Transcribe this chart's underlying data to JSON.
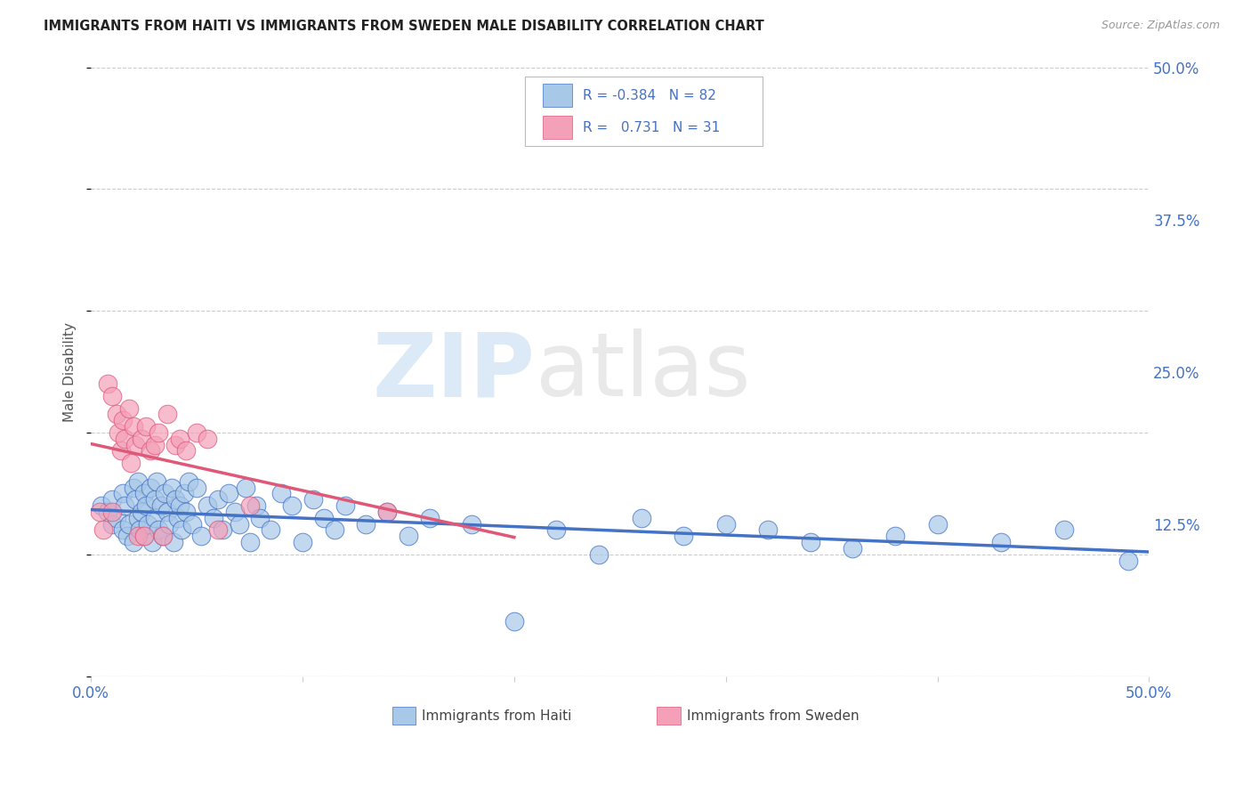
{
  "title": "IMMIGRANTS FROM HAITI VS IMMIGRANTS FROM SWEDEN MALE DISABILITY CORRELATION CHART",
  "source": "Source: ZipAtlas.com",
  "ylabel": "Male Disability",
  "xlim": [
    0.0,
    0.5
  ],
  "ylim": [
    0.0,
    0.5
  ],
  "haiti_color": "#a8c8e8",
  "sweden_color": "#f4a0b8",
  "haiti_line_color": "#4472c4",
  "sweden_line_color": "#e05878",
  "legend_label_haiti": "Immigrants from Haiti",
  "legend_label_sweden": "Immigrants from Sweden",
  "watermark_zip": "ZIP",
  "watermark_atlas": "atlas",
  "haiti_R": -0.384,
  "haiti_N": 82,
  "sweden_R": 0.731,
  "sweden_N": 31,
  "haiti_scatter_x": [
    0.005,
    0.008,
    0.01,
    0.01,
    0.012,
    0.015,
    0.015,
    0.016,
    0.017,
    0.018,
    0.02,
    0.02,
    0.021,
    0.022,
    0.022,
    0.023,
    0.024,
    0.025,
    0.025,
    0.026,
    0.027,
    0.028,
    0.029,
    0.03,
    0.03,
    0.031,
    0.032,
    0.033,
    0.034,
    0.035,
    0.036,
    0.037,
    0.038,
    0.039,
    0.04,
    0.041,
    0.042,
    0.043,
    0.044,
    0.045,
    0.046,
    0.048,
    0.05,
    0.052,
    0.055,
    0.058,
    0.06,
    0.062,
    0.065,
    0.068,
    0.07,
    0.073,
    0.075,
    0.078,
    0.08,
    0.085,
    0.09,
    0.095,
    0.1,
    0.105,
    0.11,
    0.115,
    0.12,
    0.13,
    0.14,
    0.15,
    0.16,
    0.18,
    0.2,
    0.22,
    0.24,
    0.26,
    0.28,
    0.3,
    0.32,
    0.34,
    0.36,
    0.38,
    0.4,
    0.43,
    0.46,
    0.49
  ],
  "haiti_scatter_y": [
    0.14,
    0.135,
    0.145,
    0.125,
    0.13,
    0.15,
    0.12,
    0.14,
    0.115,
    0.125,
    0.155,
    0.11,
    0.145,
    0.13,
    0.16,
    0.12,
    0.135,
    0.15,
    0.115,
    0.14,
    0.125,
    0.155,
    0.11,
    0.145,
    0.13,
    0.16,
    0.12,
    0.14,
    0.115,
    0.15,
    0.135,
    0.125,
    0.155,
    0.11,
    0.145,
    0.13,
    0.14,
    0.12,
    0.15,
    0.135,
    0.16,
    0.125,
    0.155,
    0.115,
    0.14,
    0.13,
    0.145,
    0.12,
    0.15,
    0.135,
    0.125,
    0.155,
    0.11,
    0.14,
    0.13,
    0.12,
    0.15,
    0.14,
    0.11,
    0.145,
    0.13,
    0.12,
    0.14,
    0.125,
    0.135,
    0.115,
    0.13,
    0.125,
    0.045,
    0.12,
    0.1,
    0.13,
    0.115,
    0.125,
    0.12,
    0.11,
    0.105,
    0.115,
    0.125,
    0.11,
    0.12,
    0.095
  ],
  "sweden_scatter_x": [
    0.004,
    0.006,
    0.008,
    0.01,
    0.01,
    0.012,
    0.013,
    0.014,
    0.015,
    0.016,
    0.018,
    0.019,
    0.02,
    0.021,
    0.022,
    0.024,
    0.025,
    0.026,
    0.028,
    0.03,
    0.032,
    0.034,
    0.036,
    0.04,
    0.042,
    0.045,
    0.05,
    0.055,
    0.06,
    0.075,
    0.14
  ],
  "sweden_scatter_y": [
    0.135,
    0.12,
    0.24,
    0.23,
    0.135,
    0.215,
    0.2,
    0.185,
    0.21,
    0.195,
    0.22,
    0.175,
    0.205,
    0.19,
    0.115,
    0.195,
    0.115,
    0.205,
    0.185,
    0.19,
    0.2,
    0.115,
    0.215,
    0.19,
    0.195,
    0.185,
    0.2,
    0.195,
    0.12,
    0.14,
    0.135
  ]
}
